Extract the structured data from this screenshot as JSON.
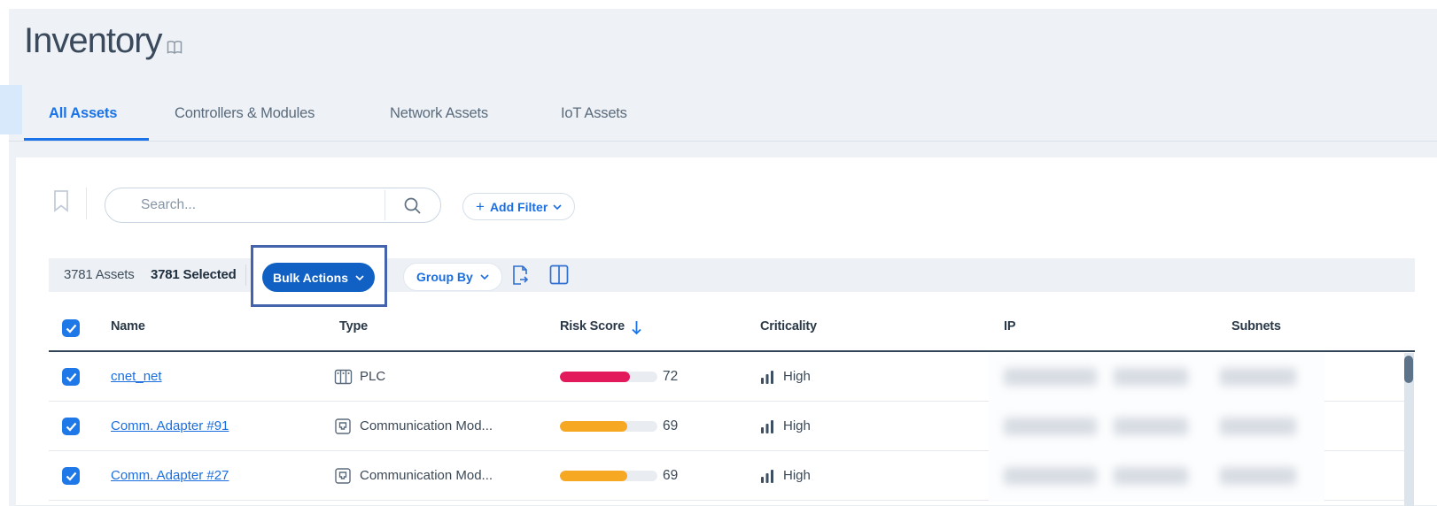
{
  "page": {
    "title": "Inventory"
  },
  "tabs": [
    {
      "label": "All Assets",
      "active": true
    },
    {
      "label": "Controllers & Modules",
      "active": false
    },
    {
      "label": "Network Assets",
      "active": false
    },
    {
      "label": "IoT Assets",
      "active": false
    }
  ],
  "search": {
    "placeholder": "Search..."
  },
  "filter": {
    "plus": "+",
    "add_label": "Add Filter"
  },
  "toolbar": {
    "assets_count": "3781 Assets",
    "selected_count": "3781 Selected",
    "bulk_actions_label": "Bulk Actions",
    "group_by_label": "Group By"
  },
  "table": {
    "columns": [
      "Name",
      "Type",
      "Risk Score",
      "Criticality",
      "IP",
      "Subnets"
    ],
    "sort": {
      "column": "Risk Score",
      "direction": "descending"
    },
    "rows": [
      {
        "name": "cnet_net",
        "type": "PLC",
        "type_icon": "plc-icon",
        "risk_score": 72,
        "risk_color": "#e2195b",
        "criticality": "High",
        "ip": "redacted",
        "subnets": "redacted"
      },
      {
        "name": "Comm. Adapter #91",
        "type": "Communication Mod...",
        "type_icon": "comm-module-icon",
        "risk_score": 69,
        "risk_color": "#f7a823",
        "criticality": "High",
        "ip": "redacted",
        "subnets": "redacted"
      },
      {
        "name": "Comm. Adapter #27",
        "type": "Communication Mod...",
        "type_icon": "comm-module-icon",
        "risk_score": 69,
        "risk_color": "#f7a823",
        "criticality": "High",
        "ip": "redacted",
        "subnets": "redacted"
      }
    ]
  },
  "colors": {
    "accent_blue": "#1a73e8",
    "link_blue": "#1a6ee0",
    "bulk_button_blue": "#1161c4",
    "annotation_border": "#4363ac",
    "risk_high_red": "#e2195b",
    "risk_medium_orange": "#f7a823",
    "bar_track": "#e9edf2",
    "panel_gray": "#eef1f5",
    "band_gray": "#edf0f4",
    "header_dark_border": "#324458",
    "scroll_thumb": "#5d7389"
  }
}
